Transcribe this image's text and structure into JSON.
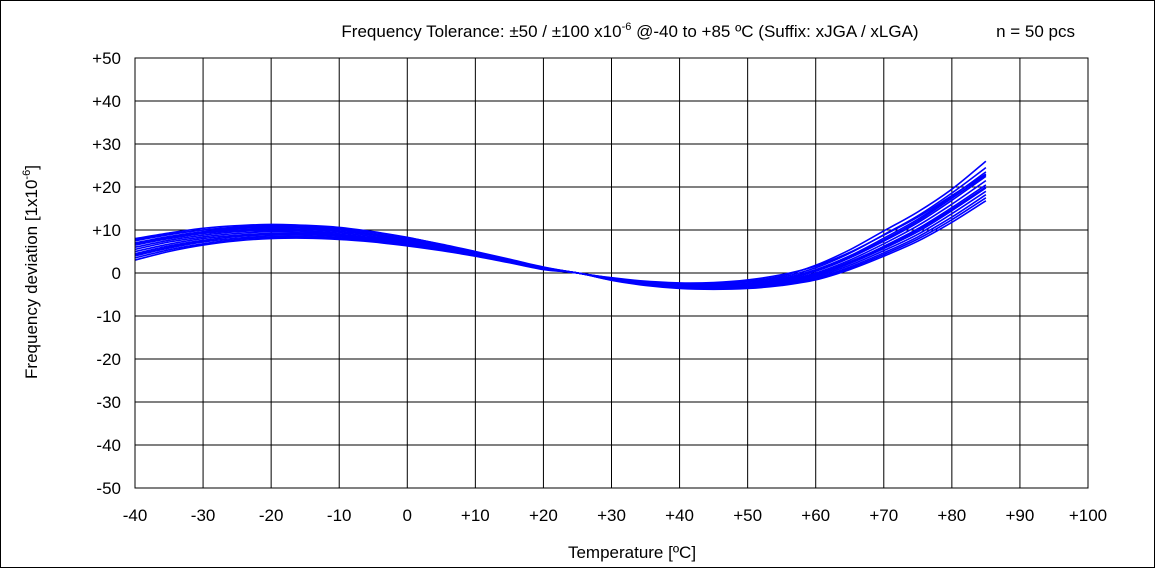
{
  "chart_data": {
    "type": "line",
    "title": {
      "prefix": "Frequency Tolerance: ±50 / ±100 x10",
      "sup": "-6",
      "suffix": " @-40 to +85 ºC (Suffix: xJGA / xLGA)"
    },
    "sample_note": "n = 50 pcs",
    "xlabel": "Temperature [ºC]",
    "ylabel": {
      "prefix": "Frequency deviation [1x10",
      "sup": "-6",
      "suffix": "]"
    },
    "xlim": [
      -40,
      100
    ],
    "ylim": [
      -50,
      50
    ],
    "x_ticks": [
      -40,
      -30,
      -20,
      -10,
      0,
      10,
      20,
      30,
      40,
      50,
      60,
      70,
      80,
      90,
      100
    ],
    "y_ticks": [
      -50,
      -40,
      -30,
      -20,
      -10,
      0,
      10,
      20,
      30,
      40,
      50
    ],
    "x_tick_labels": [
      "-40",
      "-30",
      "-20",
      "-10",
      "0",
      "+10",
      "+20",
      "+30",
      "+40",
      "+50",
      "+60",
      "+70",
      "+80",
      "+90",
      "+100"
    ],
    "y_tick_labels": [
      "-50",
      "-40",
      "-30",
      "-20",
      "-10",
      "0",
      "+10",
      "+20",
      "+30",
      "+40",
      "+50"
    ],
    "grid": true,
    "line_color": "#0000ff",
    "x": [
      -40,
      -35,
      -30,
      -25,
      -20,
      -15,
      -10,
      -5,
      0,
      5,
      10,
      15,
      20,
      25,
      30,
      35,
      40,
      45,
      50,
      55,
      60,
      65,
      70,
      75,
      80,
      85
    ],
    "series": [
      {
        "values": [
          8.0,
          9.3,
          10.4,
          11.0,
          11.3,
          11.1,
          10.6,
          9.6,
          8.3,
          6.6,
          4.8,
          3.0,
          1.3,
          0.0,
          -1.2,
          -2.0,
          -2.4,
          -2.4,
          -1.9,
          -0.7,
          1.8,
          5.4,
          9.8,
          14.2,
          19.5,
          26.0
        ]
      },
      {
        "values": [
          7.5,
          8.9,
          10.0,
          10.7,
          11.0,
          10.9,
          10.4,
          9.5,
          8.2,
          6.6,
          4.8,
          3.0,
          1.3,
          0.0,
          -1.2,
          -2.1,
          -2.5,
          -2.6,
          -2.1,
          -1.0,
          1.2,
          4.6,
          8.9,
          13.3,
          18.6,
          24.5
        ]
      },
      {
        "values": [
          7.0,
          8.5,
          9.6,
          10.3,
          10.6,
          10.5,
          10.0,
          9.1,
          7.9,
          6.4,
          4.7,
          2.9,
          1.2,
          0.0,
          -1.3,
          -2.2,
          -2.7,
          -2.8,
          -2.4,
          -1.3,
          0.8,
          4.0,
          8.1,
          12.5,
          17.8,
          23.5
        ]
      },
      {
        "values": [
          6.5,
          8.0,
          9.2,
          9.9,
          10.2,
          10.1,
          9.6,
          8.8,
          7.6,
          6.2,
          4.6,
          2.9,
          1.2,
          0.0,
          -1.3,
          -2.3,
          -2.8,
          -3.0,
          -2.6,
          -1.6,
          0.4,
          3.5,
          7.4,
          11.7,
          16.9,
          22.5
        ]
      },
      {
        "values": [
          6.0,
          7.6,
          8.8,
          9.6,
          9.9,
          9.8,
          9.3,
          8.5,
          7.4,
          6.1,
          4.5,
          2.8,
          1.1,
          0.0,
          -1.4,
          -2.4,
          -3.0,
          -3.1,
          -2.8,
          -1.8,
          0.0,
          3.0,
          6.8,
          11.0,
          16.0,
          21.5
        ]
      },
      {
        "values": [
          5.5,
          7.2,
          8.4,
          9.2,
          9.6,
          9.5,
          9.0,
          8.2,
          7.2,
          5.9,
          4.4,
          2.7,
          1.1,
          0.0,
          -1.4,
          -2.4,
          -3.1,
          -3.2,
          -2.9,
          -2.0,
          -0.3,
          2.6,
          6.2,
          10.3,
          15.2,
          20.5
        ]
      },
      {
        "values": [
          5.0,
          6.7,
          8.0,
          8.8,
          9.2,
          9.2,
          8.7,
          8.0,
          7.0,
          5.7,
          4.3,
          2.7,
          1.0,
          0.0,
          -1.5,
          -2.5,
          -3.2,
          -3.4,
          -3.1,
          -2.2,
          -0.6,
          2.2,
          5.7,
          9.6,
          14.5,
          19.8
        ]
      },
      {
        "values": [
          4.5,
          6.3,
          7.6,
          8.5,
          8.9,
          8.9,
          8.5,
          7.8,
          6.8,
          5.6,
          4.2,
          2.6,
          1.0,
          0.0,
          -1.5,
          -2.6,
          -3.3,
          -3.5,
          -3.2,
          -2.4,
          -0.9,
          1.8,
          5.2,
          9.0,
          13.8,
          19.0
        ]
      },
      {
        "values": [
          4.0,
          5.8,
          7.2,
          8.1,
          8.6,
          8.6,
          8.2,
          7.6,
          6.6,
          5.4,
          4.1,
          2.5,
          0.9,
          0.0,
          -1.6,
          -2.7,
          -3.4,
          -3.6,
          -3.4,
          -2.6,
          -1.2,
          1.4,
          4.7,
          8.4,
          13.0,
          18.2
        ]
      },
      {
        "values": [
          3.5,
          5.4,
          6.8,
          7.8,
          8.3,
          8.3,
          8.0,
          7.4,
          6.5,
          5.3,
          4.0,
          2.5,
          0.9,
          0.0,
          -1.6,
          -2.8,
          -3.5,
          -3.7,
          -3.5,
          -2.8,
          -1.4,
          1.1,
          4.3,
          7.9,
          12.4,
          17.5
        ]
      },
      {
        "values": [
          3.0,
          5.0,
          6.5,
          7.5,
          8.0,
          8.1,
          7.8,
          7.2,
          6.3,
          5.2,
          3.9,
          2.4,
          0.8,
          0.0,
          -1.7,
          -2.9,
          -3.6,
          -3.8,
          -3.6,
          -2.9,
          -1.6,
          0.8,
          3.9,
          7.4,
          11.8,
          16.8
        ]
      },
      {
        "values": [
          7.8,
          9.0,
          10.0,
          10.5,
          10.8,
          10.7,
          10.2,
          9.4,
          8.2,
          6.7,
          5.0,
          3.2,
          1.4,
          0.0,
          -1.1,
          -1.9,
          -2.3,
          -2.2,
          -1.6,
          -0.4,
          1.6,
          4.8,
          8.8,
          13.0,
          18.0,
          23.0
        ]
      },
      {
        "values": [
          4.2,
          6.0,
          7.5,
          8.5,
          9.0,
          9.1,
          8.8,
          8.1,
          7.1,
          5.9,
          4.4,
          2.8,
          1.1,
          0.0,
          -1.4,
          -2.5,
          -3.2,
          -3.3,
          -3.0,
          -2.1,
          -0.4,
          2.4,
          6.0,
          10.0,
          14.8,
          20.0
        ]
      },
      {
        "values": [
          6.8,
          8.3,
          9.4,
          10.0,
          10.3,
          10.2,
          9.7,
          8.9,
          7.8,
          6.3,
          4.7,
          2.9,
          1.2,
          0.0,
          -1.3,
          -2.2,
          -2.8,
          -2.9,
          -2.5,
          -1.5,
          0.5,
          3.7,
          7.7,
          12.1,
          17.4,
          22.8
        ]
      }
    ]
  }
}
